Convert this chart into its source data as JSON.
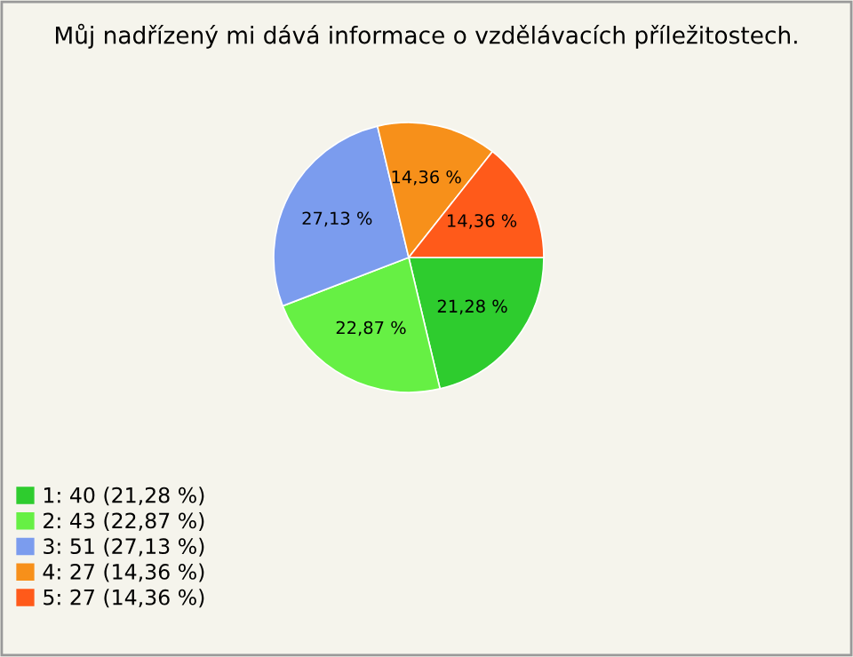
{
  "chart_data": {
    "type": "pie",
    "title": "Můj nadřízený mi dává informace o vzdělávacích příležitostech.",
    "categories": [
      "1: 40 (21,28 %)",
      "2: 43 (22,87 %)",
      "3: 51 (27,13 %)",
      "4: 27 (14,36 %)",
      "5: 27 (14,36 %)"
    ],
    "values": [
      21.28,
      22.87,
      27.13,
      14.36,
      14.36
    ],
    "value_labels": [
      "21,28 %",
      "22,87 %",
      "27,13 %",
      "14,36 %",
      "14,36 %"
    ],
    "colors": [
      "#2ecc2e",
      "#66f044",
      "#7b9cee",
      "#f7901a",
      "#ff5a1a"
    ],
    "legend": "bottom left"
  }
}
